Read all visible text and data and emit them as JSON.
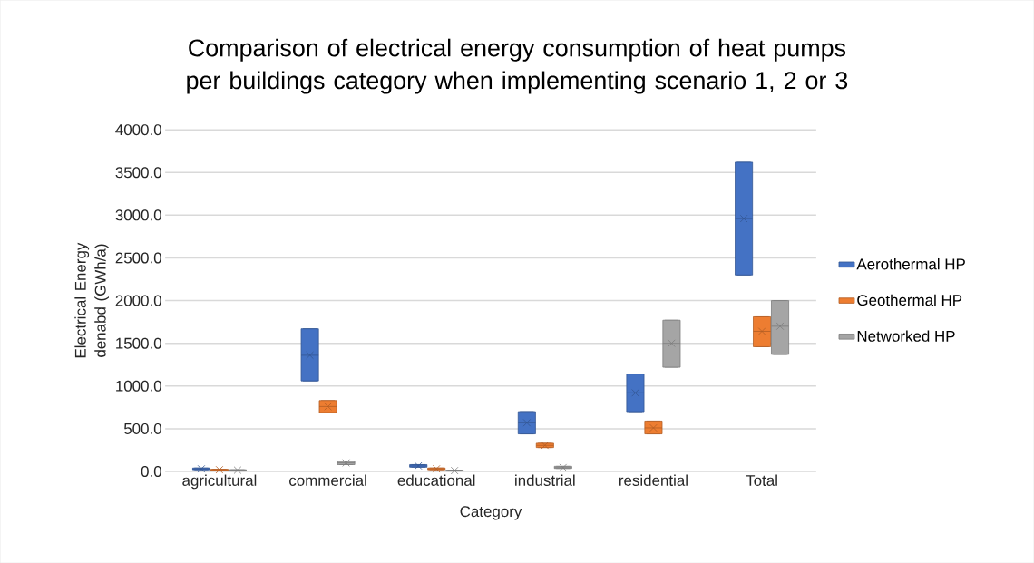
{
  "chart_data": {
    "type": "box",
    "title": "Comparison of electrical energy consumption of heat pumps per buildings category when implementing scenario 1, 2 or 3",
    "xlabel": "Category",
    "ylabel": "Electrical Energy denabd (GWh/a)",
    "categories": [
      "agricultural",
      "commercial",
      "educational",
      "industrial",
      "residential",
      "Total"
    ],
    "series": [
      {
        "name": "Aerothermal HP",
        "color": "#4472c4",
        "boxes": [
          {
            "low": 20,
            "q1": 20,
            "median": 30,
            "q3": 40,
            "high": 40,
            "mean": 30
          },
          {
            "low": 1060,
            "q1": 1060,
            "median": 1360,
            "q3": 1670,
            "high": 1670,
            "mean": 1360
          },
          {
            "low": 50,
            "q1": 50,
            "median": 65,
            "q3": 80,
            "high": 80,
            "mean": 65
          },
          {
            "low": 440,
            "q1": 440,
            "median": 570,
            "q3": 700,
            "high": 700,
            "mean": 570
          },
          {
            "low": 700,
            "q1": 700,
            "median": 920,
            "q3": 1140,
            "high": 1140,
            "mean": 920
          },
          {
            "low": 2300,
            "q1": 2300,
            "median": 2960,
            "q3": 3620,
            "high": 3620,
            "mean": 2960
          }
        ]
      },
      {
        "name": "Geothermal HP",
        "color": "#ed7d31",
        "boxes": [
          {
            "low": 10,
            "q1": 10,
            "median": 20,
            "q3": 25,
            "high": 25,
            "mean": 20
          },
          {
            "low": 690,
            "q1": 690,
            "median": 760,
            "q3": 830,
            "high": 830,
            "mean": 760
          },
          {
            "low": 20,
            "q1": 20,
            "median": 30,
            "q3": 40,
            "high": 40,
            "mean": 30
          },
          {
            "low": 280,
            "q1": 280,
            "median": 305,
            "q3": 330,
            "high": 330,
            "mean": 305
          },
          {
            "low": 440,
            "q1": 440,
            "median": 510,
            "q3": 590,
            "high": 590,
            "mean": 510
          },
          {
            "low": 1460,
            "q1": 1460,
            "median": 1640,
            "q3": 1810,
            "high": 1810,
            "mean": 1640
          }
        ]
      },
      {
        "name": "Networked HP",
        "color": "#a5a5a5",
        "boxes": [
          {
            "low": 5,
            "q1": 5,
            "median": 15,
            "q3": 20,
            "high": 20,
            "mean": 15
          },
          {
            "low": 80,
            "q1": 80,
            "median": 100,
            "q3": 120,
            "high": 120,
            "mean": 100
          },
          {
            "low": 5,
            "q1": 5,
            "median": 10,
            "q3": 15,
            "high": 15,
            "mean": 10
          },
          {
            "low": 35,
            "q1": 35,
            "median": 45,
            "q3": 60,
            "high": 60,
            "mean": 45
          },
          {
            "low": 1220,
            "q1": 1220,
            "median": 1500,
            "q3": 1770,
            "high": 1770,
            "mean": 1500
          },
          {
            "low": 1370,
            "q1": 1370,
            "median": 1700,
            "q3": 2000,
            "high": 2000,
            "mean": 1700
          }
        ]
      }
    ],
    "ylim": [
      0,
      4000
    ],
    "yticks": [
      {
        "value": 0,
        "label": "0.0"
      },
      {
        "value": 500,
        "label": "500.0"
      },
      {
        "value": 1000,
        "label": "1000.0"
      },
      {
        "value": 1500,
        "label": "1500.0"
      },
      {
        "value": 2000,
        "label": "2000.0"
      },
      {
        "value": 2500,
        "label": "2500.0"
      },
      {
        "value": 3000,
        "label": "3000.0"
      },
      {
        "value": 3500,
        "label": "3500.0"
      },
      {
        "value": 4000,
        "label": "4000.0"
      }
    ],
    "grid": "y",
    "legend": "right"
  }
}
